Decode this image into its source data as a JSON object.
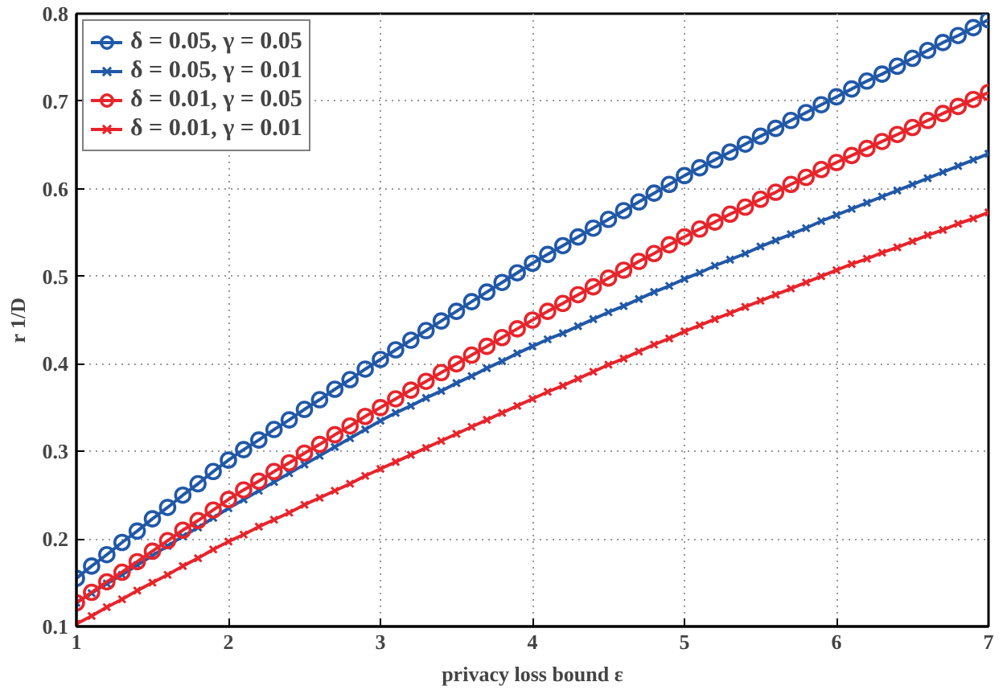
{
  "chart_data": {
    "type": "line",
    "xlabel": "privacy loss bound ε",
    "ylabel": "r 1/D",
    "x": [
      1.0,
      1.1,
      1.2,
      1.3,
      1.4,
      1.5,
      1.6,
      1.7,
      1.8,
      1.9,
      2.0,
      2.1,
      2.2,
      2.3,
      2.4,
      2.5,
      2.6,
      2.7,
      2.8,
      2.9,
      3.0,
      3.1,
      3.2,
      3.3,
      3.4,
      3.5,
      3.6,
      3.7,
      3.8,
      3.9,
      4.0,
      4.1,
      4.2,
      4.3,
      4.4,
      4.5,
      4.6,
      4.7,
      4.8,
      4.9,
      5.0,
      5.1,
      5.2,
      5.3,
      5.4,
      5.5,
      5.6,
      5.7,
      5.8,
      5.9,
      6.0,
      6.1,
      6.2,
      6.3,
      6.4,
      6.5,
      6.6,
      6.7,
      6.8,
      6.9,
      7.0
    ],
    "series": [
      {
        "name": "δ = 0.05, γ = 0.05",
        "color": "#2158a8",
        "marker": "circle",
        "values": [
          0.155,
          0.169,
          0.182,
          0.196,
          0.209,
          0.223,
          0.236,
          0.25,
          0.263,
          0.277,
          0.29,
          0.302,
          0.313,
          0.325,
          0.336,
          0.348,
          0.359,
          0.371,
          0.382,
          0.394,
          0.405,
          0.416,
          0.427,
          0.438,
          0.449,
          0.46,
          0.471,
          0.482,
          0.493,
          0.504,
          0.515,
          0.525,
          0.535,
          0.545,
          0.555,
          0.565,
          0.575,
          0.585,
          0.595,
          0.605,
          0.615,
          0.624,
          0.633,
          0.642,
          0.651,
          0.66,
          0.669,
          0.678,
          0.687,
          0.696,
          0.705,
          0.714,
          0.723,
          0.731,
          0.74,
          0.749,
          0.758,
          0.767,
          0.775,
          0.784,
          0.793
        ]
      },
      {
        "name": "δ = 0.05, γ = 0.01",
        "color": "#2158a8",
        "marker": "cross",
        "values": [
          0.127,
          0.138,
          0.149,
          0.159,
          0.17,
          0.181,
          0.192,
          0.203,
          0.213,
          0.224,
          0.235,
          0.245,
          0.255,
          0.265,
          0.275,
          0.285,
          0.295,
          0.305,
          0.315,
          0.325,
          0.335,
          0.344,
          0.352,
          0.361,
          0.369,
          0.378,
          0.386,
          0.395,
          0.403,
          0.412,
          0.42,
          0.428,
          0.435,
          0.443,
          0.451,
          0.459,
          0.466,
          0.474,
          0.482,
          0.489,
          0.497,
          0.504,
          0.512,
          0.519,
          0.526,
          0.534,
          0.541,
          0.548,
          0.555,
          0.563,
          0.57,
          0.577,
          0.584,
          0.591,
          0.598,
          0.605,
          0.612,
          0.619,
          0.626,
          0.633,
          0.64
        ]
      },
      {
        "name": "δ = 0.01, γ = 0.05",
        "color": "#e8242b",
        "marker": "circle",
        "values": [
          0.127,
          0.139,
          0.151,
          0.162,
          0.174,
          0.186,
          0.198,
          0.21,
          0.221,
          0.233,
          0.245,
          0.256,
          0.266,
          0.277,
          0.287,
          0.298,
          0.308,
          0.319,
          0.329,
          0.34,
          0.35,
          0.36,
          0.37,
          0.38,
          0.39,
          0.4,
          0.41,
          0.42,
          0.43,
          0.44,
          0.45,
          0.46,
          0.469,
          0.479,
          0.488,
          0.498,
          0.507,
          0.517,
          0.526,
          0.536,
          0.545,
          0.554,
          0.562,
          0.571,
          0.579,
          0.588,
          0.596,
          0.605,
          0.613,
          0.622,
          0.63,
          0.638,
          0.646,
          0.654,
          0.662,
          0.67,
          0.678,
          0.686,
          0.694,
          0.702,
          0.71
        ]
      },
      {
        "name": "δ = 0.01, γ = 0.01",
        "color": "#e8242b",
        "marker": "cross",
        "values": [
          0.103,
          0.112,
          0.122,
          0.131,
          0.141,
          0.15,
          0.159,
          0.169,
          0.178,
          0.188,
          0.197,
          0.205,
          0.214,
          0.222,
          0.23,
          0.239,
          0.247,
          0.255,
          0.263,
          0.272,
          0.28,
          0.288,
          0.296,
          0.304,
          0.312,
          0.32,
          0.328,
          0.336,
          0.344,
          0.352,
          0.36,
          0.368,
          0.375,
          0.383,
          0.391,
          0.399,
          0.406,
          0.414,
          0.422,
          0.429,
          0.437,
          0.444,
          0.451,
          0.458,
          0.465,
          0.472,
          0.479,
          0.486,
          0.493,
          0.5,
          0.507,
          0.514,
          0.52,
          0.527,
          0.533,
          0.54,
          0.547,
          0.553,
          0.56,
          0.566,
          0.573
        ]
      }
    ],
    "xlim": [
      1,
      7
    ],
    "xticks": [
      1,
      2,
      3,
      4,
      5,
      6,
      7
    ],
    "ylim": [
      0.1,
      0.8
    ],
    "yticks": [
      0.1,
      0.2,
      0.3,
      0.4,
      0.5,
      0.6,
      0.7,
      0.8
    ],
    "grid": true,
    "legend": "top left",
    "line_style": "solid"
  }
}
